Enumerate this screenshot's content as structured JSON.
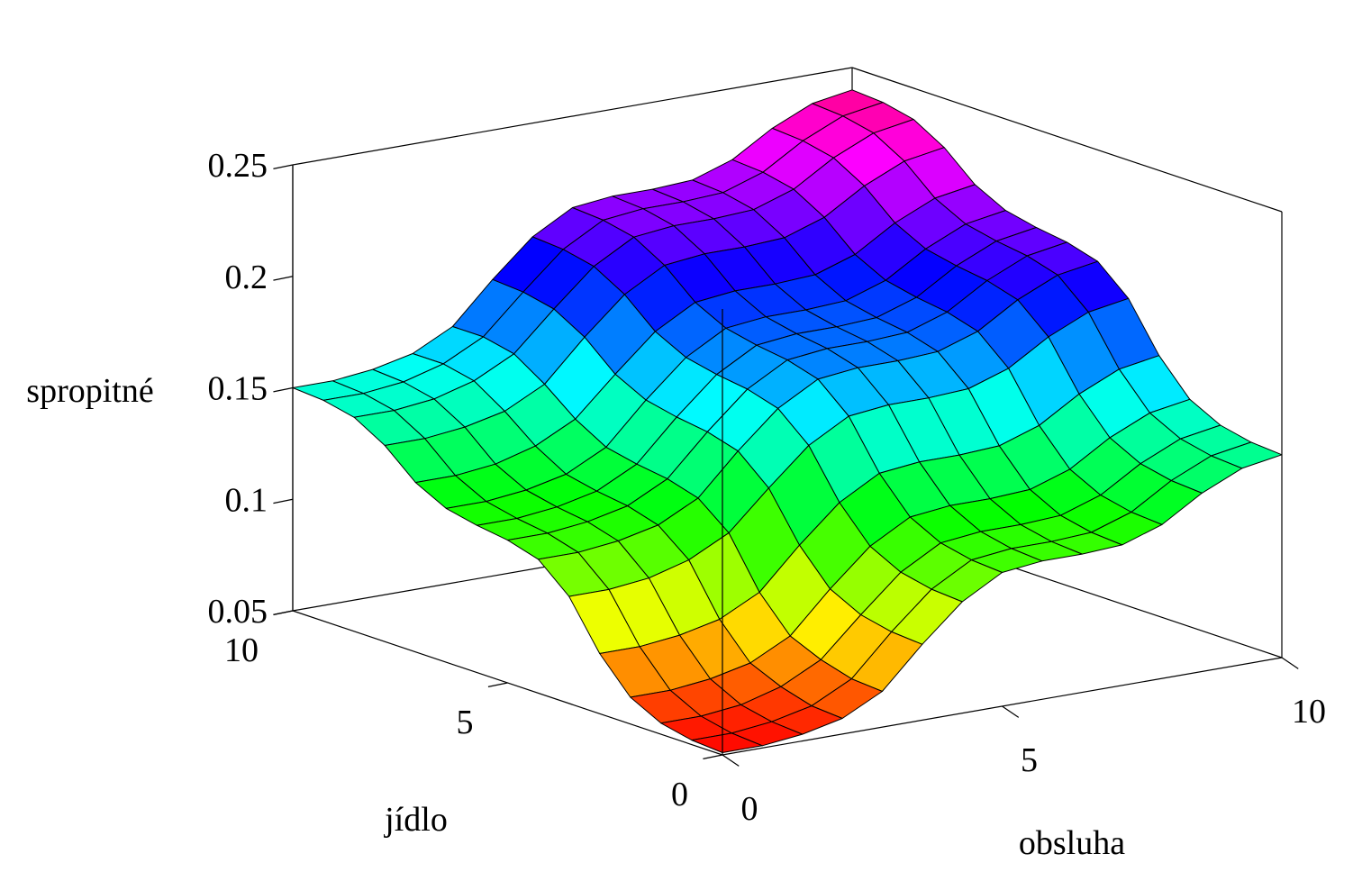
{
  "chart_data": {
    "type": "surface",
    "title": "",
    "xlabel": "obsluha",
    "ylabel": "jídlo",
    "zlabel": "spropitné",
    "xlim": [
      0,
      10
    ],
    "ylim": [
      0,
      10
    ],
    "zlim": [
      0.05,
      0.25
    ],
    "x_ticks": [
      0,
      5,
      10
    ],
    "y_ticks": [
      0,
      5,
      10
    ],
    "z_ticks": [
      0.05,
      0.1,
      0.15,
      0.2,
      0.25
    ],
    "x_tick_labels": [
      "0",
      "5",
      "10"
    ],
    "y_tick_labels": [
      "0",
      "5",
      "10"
    ],
    "z_tick_labels": [
      "0.05",
      "0.1",
      "0.15",
      "0.2",
      "0.25"
    ],
    "grid": false,
    "box": true,
    "colormap": "hsv",
    "color_range": [
      0.05,
      0.25
    ],
    "mesh_size": [
      15,
      15
    ],
    "x_values": [
      0,
      0.714,
      1.429,
      2.143,
      2.857,
      3.571,
      4.286,
      5,
      5.714,
      6.429,
      7.143,
      7.857,
      8.571,
      9.286,
      10
    ],
    "y_values": [
      0,
      0.714,
      1.429,
      2.143,
      2.857,
      3.571,
      4.286,
      5,
      5.714,
      6.429,
      7.143,
      7.857,
      8.571,
      9.286,
      10
    ],
    "z_values_by_row_y": [
      [
        0.051,
        0.051,
        0.053,
        0.057,
        0.066,
        0.084,
        0.1,
        0.11,
        0.112,
        0.112,
        0.113,
        0.119,
        0.13,
        0.138,
        0.141
      ],
      [
        0.052,
        0.052,
        0.054,
        0.058,
        0.067,
        0.085,
        0.101,
        0.111,
        0.113,
        0.113,
        0.114,
        0.12,
        0.131,
        0.139,
        0.142
      ],
      [
        0.055,
        0.055,
        0.057,
        0.062,
        0.071,
        0.088,
        0.104,
        0.114,
        0.116,
        0.116,
        0.117,
        0.123,
        0.134,
        0.142,
        0.145
      ],
      [
        0.062,
        0.062,
        0.064,
        0.068,
        0.077,
        0.095,
        0.111,
        0.121,
        0.123,
        0.123,
        0.124,
        0.13,
        0.141,
        0.149,
        0.152
      ],
      [
        0.077,
        0.077,
        0.079,
        0.083,
        0.092,
        0.11,
        0.126,
        0.136,
        0.138,
        0.138,
        0.139,
        0.145,
        0.156,
        0.164,
        0.167
      ],
      [
        0.098,
        0.098,
        0.1,
        0.105,
        0.114,
        0.131,
        0.147,
        0.157,
        0.159,
        0.159,
        0.16,
        0.166,
        0.177,
        0.185,
        0.188
      ],
      [
        0.11,
        0.11,
        0.112,
        0.116,
        0.125,
        0.143,
        0.159,
        0.169,
        0.171,
        0.171,
        0.172,
        0.178,
        0.189,
        0.197,
        0.2
      ],
      [
        0.114,
        0.114,
        0.116,
        0.12,
        0.129,
        0.147,
        0.163,
        0.173,
        0.175,
        0.175,
        0.176,
        0.182,
        0.193,
        0.201,
        0.204
      ],
      [
        0.116,
        0.116,
        0.118,
        0.122,
        0.131,
        0.149,
        0.165,
        0.175,
        0.177,
        0.177,
        0.178,
        0.184,
        0.195,
        0.203,
        0.206
      ],
      [
        0.119,
        0.119,
        0.121,
        0.125,
        0.134,
        0.152,
        0.168,
        0.178,
        0.18,
        0.18,
        0.181,
        0.187,
        0.198,
        0.206,
        0.209
      ],
      [
        0.126,
        0.126,
        0.128,
        0.133,
        0.142,
        0.159,
        0.175,
        0.185,
        0.187,
        0.187,
        0.188,
        0.194,
        0.205,
        0.213,
        0.216
      ],
      [
        0.138,
        0.138,
        0.14,
        0.144,
        0.153,
        0.171,
        0.187,
        0.197,
        0.199,
        0.199,
        0.2,
        0.206,
        0.217,
        0.225,
        0.228
      ],
      [
        0.146,
        0.146,
        0.148,
        0.153,
        0.162,
        0.179,
        0.195,
        0.205,
        0.207,
        0.207,
        0.208,
        0.214,
        0.225,
        0.233,
        0.236
      ],
      [
        0.149,
        0.149,
        0.151,
        0.156,
        0.165,
        0.182,
        0.198,
        0.208,
        0.21,
        0.21,
        0.211,
        0.217,
        0.228,
        0.236,
        0.239
      ],
      [
        0.15,
        0.15,
        0.152,
        0.156,
        0.165,
        0.183,
        0.199,
        0.209,
        0.211,
        0.211,
        0.212,
        0.218,
        0.229,
        0.237,
        0.24
      ]
    ]
  }
}
